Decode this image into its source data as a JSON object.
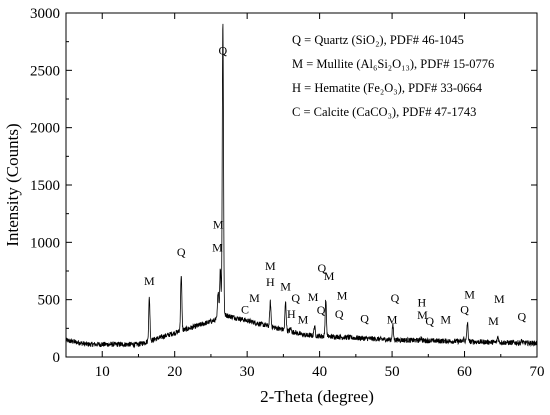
{
  "chart_data": {
    "type": "line",
    "title": "",
    "xlabel": "2-Theta (degree)",
    "ylabel": "Intensity (Counts)",
    "xlim": [
      5,
      70
    ],
    "ylim": [
      0,
      3000
    ],
    "x_ticks": [
      "10",
      "20",
      "30",
      "40",
      "50",
      "60",
      "70"
    ],
    "y_ticks": [
      "0",
      "500",
      "1000",
      "1500",
      "2000",
      "2500",
      "3000"
    ],
    "grid": false,
    "legend_position": "top-right",
    "legend": [
      {
        "text": "Q = Quartz (SiO₂), PDF# 46-1045"
      },
      {
        "text": "M = Mullite (Al₆Si₂O₁₃), PDF# 15-0776"
      },
      {
        "text": "H = Hematite (Fe₂O₃), PDF# 33-0664"
      },
      {
        "text": "C = Calcite (CaCO₃), PDF# 47-1743"
      }
    ],
    "series": [
      {
        "name": "",
        "color": "#000000",
        "peaks": [
          [
            16.5,
            520
          ],
          [
            20.9,
            720
          ],
          [
            26.0,
            580
          ],
          [
            26.3,
            780
          ],
          [
            26.65,
            2920
          ],
          [
            31.0,
            260
          ],
          [
            33.2,
            480
          ],
          [
            35.3,
            480
          ],
          [
            36.0,
            250
          ],
          [
            36.6,
            220
          ],
          [
            37.1,
            120
          ],
          [
            39.3,
            270
          ],
          [
            40.2,
            170
          ],
          [
            40.85,
            500
          ],
          [
            42.5,
            180
          ],
          [
            46.0,
            110
          ],
          [
            49.5,
            120
          ],
          [
            50.1,
            280
          ],
          [
            54.0,
            170
          ],
          [
            54.9,
            120
          ],
          [
            57.5,
            100
          ],
          [
            59.9,
            160
          ],
          [
            60.4,
            300
          ],
          [
            64.0,
            100
          ],
          [
            64.6,
            180
          ],
          [
            67.9,
            140
          ]
        ]
      }
    ],
    "annotations": [
      {
        "text": "Q",
        "x": 26.65,
        "y": 2640
      },
      {
        "text": "M",
        "x": 26.0,
        "y": 1120
      },
      {
        "text": "M",
        "x": 25.9,
        "y": 920
      },
      {
        "text": "Q",
        "x": 20.9,
        "y": 880
      },
      {
        "text": "M",
        "x": 16.5,
        "y": 630
      },
      {
        "text": "M",
        "x": 33.2,
        "y": 760
      },
      {
        "text": "H",
        "x": 33.2,
        "y": 620
      },
      {
        "text": "M",
        "x": 35.3,
        "y": 580
      },
      {
        "text": "M",
        "x": 31.0,
        "y": 480
      },
      {
        "text": "C",
        "x": 29.7,
        "y": 380
      },
      {
        "text": "Q",
        "x": 36.7,
        "y": 480
      },
      {
        "text": "H",
        "x": 36.1,
        "y": 340
      },
      {
        "text": "M",
        "x": 37.7,
        "y": 290
      },
      {
        "text": "M",
        "x": 39.1,
        "y": 490
      },
      {
        "text": "Q",
        "x": 40.3,
        "y": 740
      },
      {
        "text": "M",
        "x": 41.3,
        "y": 670
      },
      {
        "text": "Q",
        "x": 40.2,
        "y": 375
      },
      {
        "text": "M",
        "x": 43.1,
        "y": 500
      },
      {
        "text": "Q",
        "x": 42.7,
        "y": 340
      },
      {
        "text": "Q",
        "x": 46.2,
        "y": 300
      },
      {
        "text": "M",
        "x": 50.0,
        "y": 290
      },
      {
        "text": "Q",
        "x": 50.4,
        "y": 480
      },
      {
        "text": "H",
        "x": 54.1,
        "y": 440
      },
      {
        "text": "M",
        "x": 54.2,
        "y": 330
      },
      {
        "text": "Q",
        "x": 55.2,
        "y": 280
      },
      {
        "text": "M",
        "x": 57.4,
        "y": 290
      },
      {
        "text": "Q",
        "x": 60.0,
        "y": 380
      },
      {
        "text": "M",
        "x": 60.7,
        "y": 510
      },
      {
        "text": "M",
        "x": 64.0,
        "y": 280
      },
      {
        "text": "M",
        "x": 64.8,
        "y": 470
      },
      {
        "text": "Q",
        "x": 67.9,
        "y": 320
      }
    ]
  }
}
